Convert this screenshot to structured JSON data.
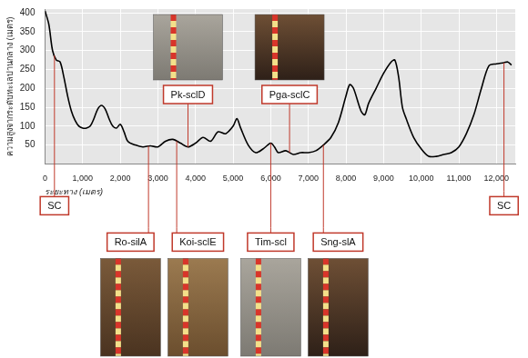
{
  "chart_data": {
    "type": "line",
    "x_label": "ระยะทาง (เมตร)",
    "y_label": "ความสูงจากระดับทะเลปานกลาง (เมตร)",
    "x": [
      0,
      100,
      200,
      300,
      400,
      500,
      600,
      700,
      800,
      900,
      1000,
      1100,
      1200,
      1300,
      1400,
      1500,
      1600,
      1700,
      1800,
      1900,
      2000,
      2100,
      2200,
      2400,
      2600,
      2800,
      3000,
      3200,
      3400,
      3600,
      3800,
      4000,
      4200,
      4400,
      4600,
      4800,
      5000,
      5100,
      5200,
      5400,
      5600,
      5800,
      6000,
      6100,
      6200,
      6400,
      6600,
      6800,
      7000,
      7200,
      7400,
      7600,
      7800,
      8000,
      8100,
      8200,
      8400,
      8500,
      8600,
      8800,
      9000,
      9200,
      9300,
      9400,
      9500,
      9600,
      9800,
      10000,
      10200,
      10400,
      10600,
      10800,
      11000,
      11200,
      11400,
      11600,
      11800,
      12000,
      12200,
      12300,
      12400
    ],
    "values": [
      405,
      370,
      300,
      275,
      270,
      230,
      180,
      140,
      115,
      100,
      95,
      95,
      100,
      120,
      145,
      155,
      145,
      120,
      100,
      95,
      105,
      85,
      60,
      50,
      45,
      48,
      45,
      60,
      65,
      55,
      45,
      55,
      70,
      60,
      85,
      80,
      100,
      120,
      95,
      50,
      30,
      40,
      55,
      45,
      30,
      35,
      25,
      30,
      30,
      35,
      50,
      70,
      110,
      180,
      210,
      200,
      140,
      130,
      160,
      200,
      240,
      270,
      275,
      230,
      150,
      120,
      70,
      40,
      20,
      20,
      25,
      30,
      45,
      80,
      130,
      200,
      260,
      265,
      268,
      270,
      262
    ],
    "color": "#000000",
    "xlim": [
      0,
      12500
    ],
    "xticks": [
      0,
      {
        "value": 1000,
        "label": "1,000"
      },
      {
        "value": 2000,
        "label": "2,000"
      },
      {
        "value": 3000,
        "label": "3,000"
      },
      {
        "value": 4000,
        "label": "4,000"
      },
      {
        "value": 5000,
        "label": "5,000"
      },
      {
        "value": 6000,
        "label": "6,000"
      },
      {
        "value": 7000,
        "label": "7,000"
      },
      {
        "value": 8000,
        "label": "8,000"
      },
      {
        "value": 9000,
        "label": "9,000"
      },
      {
        "value": 10000,
        "label": "10,000"
      },
      {
        "value": 11000,
        "label": "11,000"
      },
      {
        "value": 12000,
        "label": "12,000"
      }
    ],
    "ylim": [
      0,
      410
    ],
    "yticks": [
      50,
      100,
      150,
      200,
      250,
      300,
      350,
      400
    ],
    "grid": true,
    "annotations": {
      "above": [
        {
          "text": "Pk-sclD",
          "x": 3800
        },
        {
          "text": "Pga-sclC",
          "x": 6500
        }
      ],
      "below": [
        {
          "text": "SC",
          "x": 250
        },
        {
          "text": "Ro-silA",
          "x": 2750
        },
        {
          "text": "Koi-sclE",
          "x": 3500
        },
        {
          "text": "Tim-scl",
          "x": 6000
        },
        {
          "text": "Sng-slA",
          "x": 7400
        },
        {
          "text": "SC",
          "x": 12200
        }
      ]
    }
  }
}
